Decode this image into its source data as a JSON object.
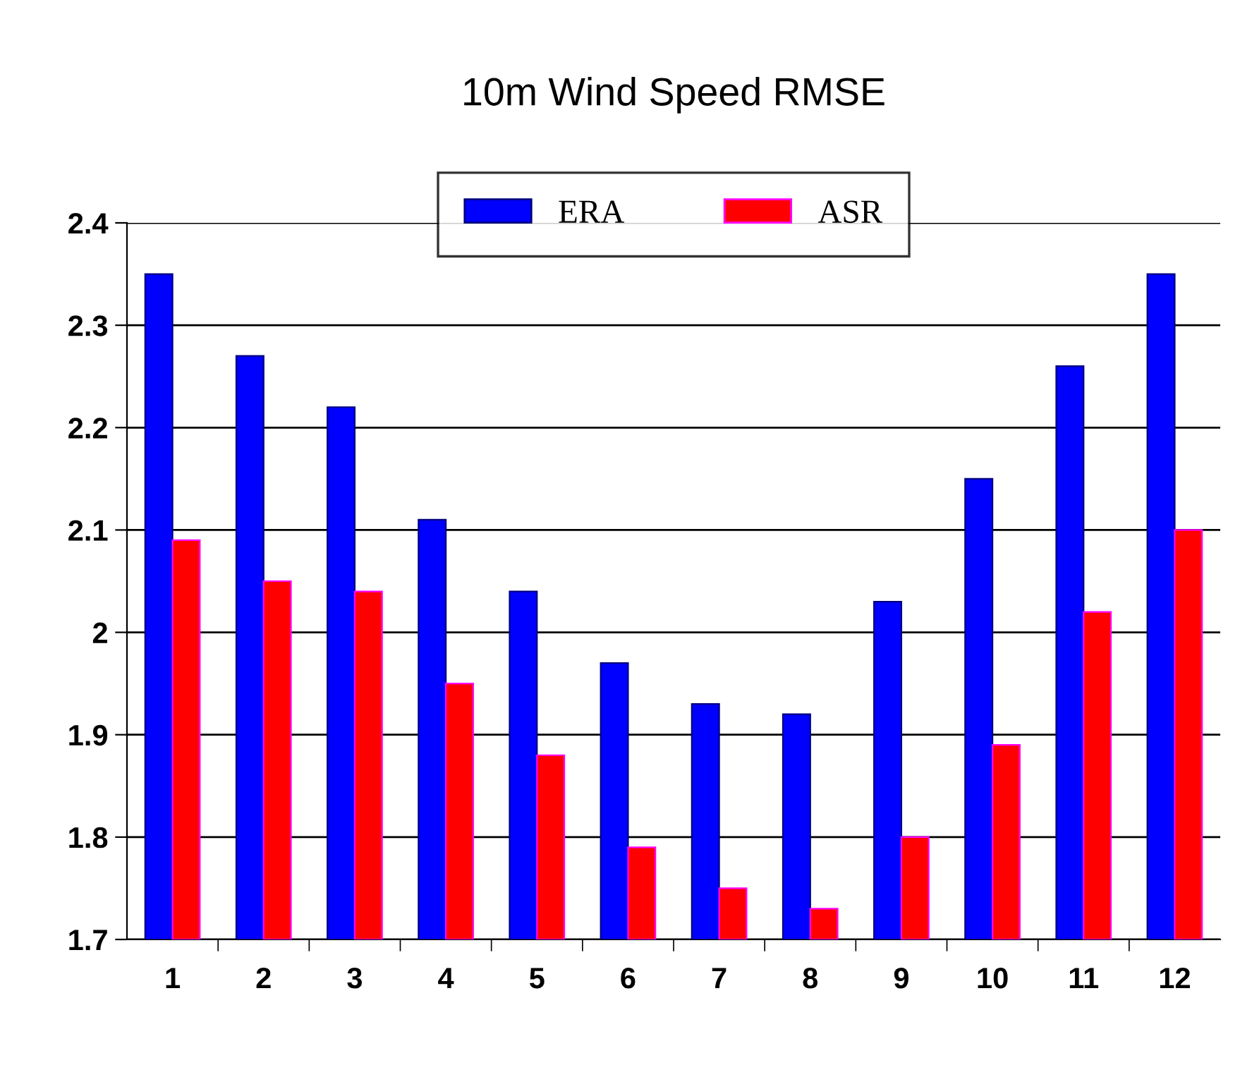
{
  "chart_data": {
    "type": "bar",
    "title": "10m Wind Speed RMSE",
    "categories": [
      "1",
      "2",
      "3",
      "4",
      "5",
      "6",
      "7",
      "8",
      "9",
      "10",
      "11",
      "12"
    ],
    "series": [
      {
        "name": "ERA",
        "color": "#0000ff",
        "values": [
          2.35,
          2.27,
          2.22,
          2.11,
          2.04,
          1.97,
          1.93,
          1.92,
          2.03,
          2.15,
          2.26,
          2.35
        ]
      },
      {
        "name": "ASR",
        "color": "#ff0000",
        "values": [
          2.09,
          2.05,
          2.04,
          1.95,
          1.88,
          1.79,
          1.75,
          1.73,
          1.8,
          1.89,
          2.02,
          2.1
        ]
      }
    ],
    "ylim": [
      1.7,
      2.4
    ],
    "yticks": [
      1.7,
      1.8,
      1.9,
      2,
      2.1,
      2.2,
      2.3,
      2.4
    ],
    "grid": "y",
    "legend": "top"
  }
}
